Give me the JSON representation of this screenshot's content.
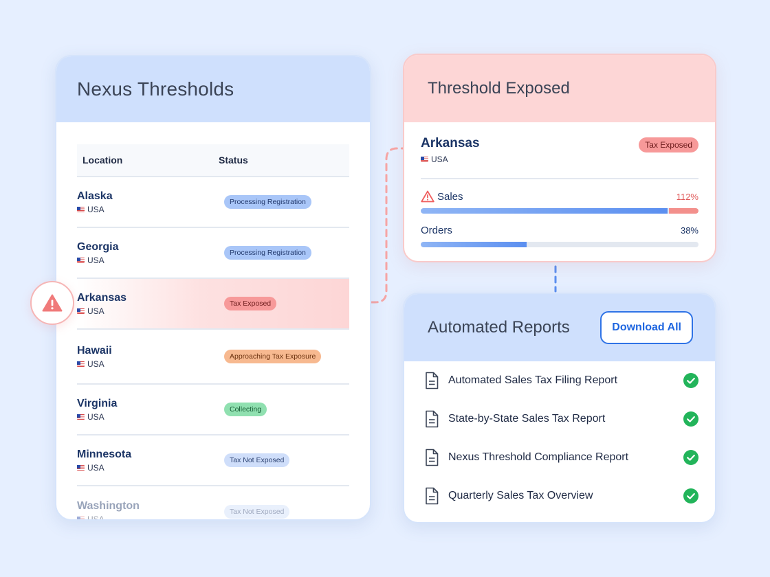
{
  "nexus": {
    "title": "Nexus Thresholds",
    "columns": {
      "location": "Location",
      "status": "Status"
    },
    "rows": [
      {
        "name": "Alaska",
        "country": "USA",
        "status": "Processing Registration"
      },
      {
        "name": "Georgia",
        "country": "USA",
        "status": "Processing Registration"
      },
      {
        "name": "Arkansas",
        "country": "USA",
        "status": "Tax Exposed"
      },
      {
        "name": "Hawaii",
        "country": "USA",
        "status": "Approaching Tax Exposure"
      },
      {
        "name": "Virginia",
        "country": "USA",
        "status": "Collecting"
      },
      {
        "name": "Minnesota",
        "country": "USA",
        "status": "Tax Not Exposed"
      },
      {
        "name": "Washington",
        "country": "USA",
        "status": "Tax Not Exposed"
      }
    ]
  },
  "exposed": {
    "title": "Threshold Exposed",
    "location": "Arkansas",
    "country": "USA",
    "badge": "Tax Exposed",
    "sales": {
      "label": "Sales",
      "value_text": "112%",
      "fraction": 1.12
    },
    "orders": {
      "label": "Orders",
      "value_text": "38%",
      "fraction": 0.38
    }
  },
  "reports": {
    "title": "Automated Reports",
    "download_label": "Download All",
    "items": [
      {
        "name": "Automated Sales Tax Filing Report"
      },
      {
        "name": "State-by-State Sales Tax Report"
      },
      {
        "name": "Nexus Threshold Compliance Report"
      },
      {
        "name": "Quarterly Sales Tax Overview"
      }
    ]
  },
  "colors": {
    "background": "#e6efff",
    "header_blue": "#cfe0fd",
    "header_red": "#fdd6d6",
    "accent_blue": "#2f73e6",
    "success_green": "#22b45a",
    "danger_red": "#f07070"
  },
  "icons": {
    "warning": "warning-triangle-icon",
    "flag": "us-flag-icon",
    "document": "document-icon",
    "check": "check-circle-icon"
  }
}
